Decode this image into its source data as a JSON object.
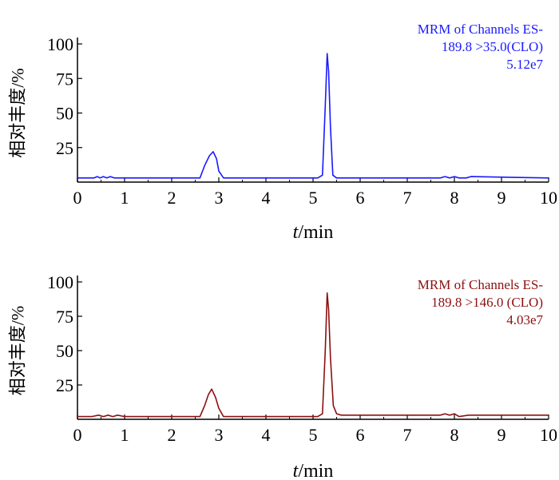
{
  "chart_data": [
    {
      "type": "line",
      "xlabel_italic": "t",
      "xlabel_rest": "/min",
      "ylabel": "相对丰度/%",
      "xlim": [
        0,
        10
      ],
      "ylim": [
        0,
        100
      ],
      "x_ticks": [
        "0",
        "1",
        "2",
        "3",
        "4",
        "5",
        "6",
        "7",
        "8",
        "9",
        "10"
      ],
      "y_ticks": [
        "25",
        "50",
        "75",
        "100"
      ],
      "annotation": [
        "MRM of Channels ES-",
        "189.8 >35.0(CLO)",
        "5.12e7"
      ],
      "color": "#1a1aff",
      "series": [
        {
          "x": [
            0.0,
            0.35,
            0.42,
            0.48,
            0.55,
            0.62,
            0.7,
            0.78,
            0.85,
            1.0,
            2.0,
            2.6,
            2.7,
            2.8,
            2.88,
            2.95,
            3.0,
            3.1,
            3.2,
            4.5,
            5.1,
            5.2,
            5.26,
            5.3,
            5.33,
            5.37,
            5.42,
            5.5,
            5.6,
            7.7,
            7.8,
            7.9,
            8.0,
            8.1,
            8.25,
            8.35,
            10.0
          ],
          "y": [
            3,
            3,
            4,
            3,
            4,
            3,
            4,
            3,
            3,
            3,
            3,
            3,
            12,
            19,
            22,
            17,
            8,
            3,
            3,
            3,
            3,
            5,
            55,
            93,
            80,
            40,
            5,
            3,
            3,
            3,
            4,
            3,
            4,
            3,
            3,
            4,
            3
          ]
        }
      ]
    },
    {
      "type": "line",
      "xlabel_italic": "t",
      "xlabel_rest": "/min",
      "ylabel": "相对丰度/%",
      "xlim": [
        0,
        10
      ],
      "ylim": [
        0,
        100
      ],
      "x_ticks": [
        "0",
        "1",
        "2",
        "3",
        "4",
        "5",
        "6",
        "7",
        "8",
        "9",
        "10"
      ],
      "y_ticks": [
        "25",
        "50",
        "75",
        "100"
      ],
      "annotation": [
        "MRM of Channels ES-",
        "189.8 >146.0 (CLO)",
        "4.03e7"
      ],
      "color": "#8b1010",
      "series": [
        {
          "x": [
            0.0,
            0.3,
            0.45,
            0.55,
            0.65,
            0.75,
            0.85,
            1.0,
            2.0,
            2.6,
            2.7,
            2.78,
            2.85,
            2.93,
            3.0,
            3.1,
            4.5,
            5.1,
            5.2,
            5.26,
            5.3,
            5.33,
            5.37,
            5.43,
            5.5,
            5.6,
            7.7,
            7.8,
            7.9,
            8.0,
            8.1,
            8.3,
            10.0
          ],
          "y": [
            2,
            2,
            3,
            2,
            3,
            2,
            3,
            2,
            2,
            2,
            10,
            18,
            22,
            16,
            8,
            2,
            2,
            2,
            4,
            50,
            92,
            80,
            45,
            10,
            4,
            3,
            3,
            4,
            3,
            4,
            2,
            3,
            3
          ]
        }
      ]
    }
  ]
}
